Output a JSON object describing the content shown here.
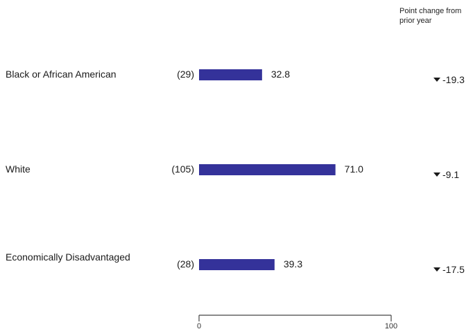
{
  "change_header": "Point change from prior year",
  "chart_data": {
    "type": "bar",
    "orientation": "horizontal",
    "categories": [
      "Black or African American",
      "White",
      "Economically Disadvantaged"
    ],
    "counts": [
      "(29)",
      "(105)",
      "(28)"
    ],
    "values": [
      32.8,
      71.0,
      39.3
    ],
    "value_labels": [
      "32.8",
      "71.0",
      "39.3"
    ],
    "changes": [
      -19.3,
      -9.1,
      -17.5
    ],
    "change_labels": [
      "-19.3",
      "-9.1",
      "-17.5"
    ],
    "change_icons": [
      "triangle-down-icon",
      "triangle-down-icon",
      "triangle-down-icon"
    ],
    "xlim": [
      0,
      100
    ],
    "xticks": [
      "0",
      "100"
    ],
    "grid": false,
    "bar_color": "#34329a"
  }
}
